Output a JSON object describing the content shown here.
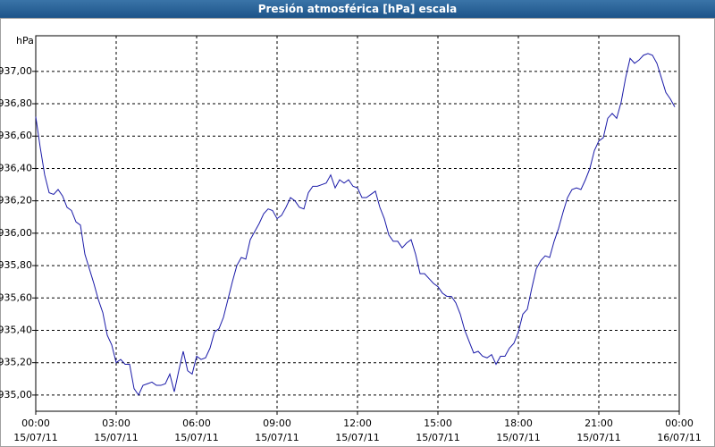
{
  "chart_data": {
    "type": "line",
    "title": "Presión atmosférica [hPa] escala",
    "y_unit": "hPa",
    "grid": true,
    "xlim": [
      0,
      1440
    ],
    "ylim": [
      934.9,
      937.22
    ],
    "xticks": [
      {
        "value": 0,
        "label": "00:00",
        "date": "15/07/11"
      },
      {
        "value": 180,
        "label": "03:00",
        "date": "15/07/11"
      },
      {
        "value": 360,
        "label": "06:00",
        "date": "15/07/11"
      },
      {
        "value": 540,
        "label": "09:00",
        "date": "15/07/11"
      },
      {
        "value": 720,
        "label": "12:00",
        "date": "15/07/11"
      },
      {
        "value": 900,
        "label": "15:00",
        "date": "15/07/11"
      },
      {
        "value": 1080,
        "label": "18:00",
        "date": "15/07/11"
      },
      {
        "value": 1260,
        "label": "21:00",
        "date": "15/07/11"
      },
      {
        "value": 1440,
        "label": "00:00",
        "date": "16/07/11"
      }
    ],
    "yticks": [
      {
        "value": 935,
        "label": "935,00"
      },
      {
        "value": 935.2,
        "label": "935,20"
      },
      {
        "value": 935.4,
        "label": "935,40"
      },
      {
        "value": 935.6,
        "label": "935,60"
      },
      {
        "value": 935.8,
        "label": "935,80"
      },
      {
        "value": 936,
        "label": "936,00"
      },
      {
        "value": 936.2,
        "label": "936,20"
      },
      {
        "value": 936.4,
        "label": "936,40"
      },
      {
        "value": 936.6,
        "label": "936,60"
      },
      {
        "value": 936.8,
        "label": "936,80"
      },
      {
        "value": 937,
        "label": "937,00"
      }
    ],
    "x": [
      0,
      10,
      20,
      30,
      40,
      50,
      60,
      70,
      80,
      90,
      100,
      110,
      120,
      130,
      140,
      150,
      160,
      170,
      180,
      190,
      200,
      210,
      220,
      230,
      240,
      250,
      260,
      270,
      280,
      290,
      300,
      310,
      320,
      330,
      340,
      350,
      360,
      370,
      380,
      390,
      400,
      410,
      420,
      430,
      440,
      450,
      460,
      470,
      480,
      490,
      500,
      510,
      520,
      530,
      540,
      550,
      560,
      570,
      580,
      590,
      600,
      610,
      620,
      630,
      640,
      650,
      660,
      670,
      680,
      690,
      700,
      710,
      720,
      730,
      740,
      750,
      760,
      770,
      780,
      790,
      800,
      810,
      820,
      830,
      840,
      850,
      860,
      870,
      880,
      890,
      900,
      910,
      920,
      930,
      940,
      950,
      960,
      970,
      980,
      990,
      1000,
      1010,
      1020,
      1030,
      1040,
      1050,
      1060,
      1070,
      1080,
      1090,
      1100,
      1110,
      1120,
      1130,
      1140,
      1150,
      1160,
      1170,
      1180,
      1190,
      1200,
      1210,
      1220,
      1230,
      1240,
      1250,
      1260,
      1270,
      1280,
      1290,
      1300,
      1310,
      1320,
      1330,
      1340,
      1350,
      1360,
      1370,
      1380,
      1390,
      1400,
      1410,
      1420,
      1430
    ],
    "series": [
      {
        "name": "Presión atmosférica",
        "color": "#1a1aa8",
        "values": [
          936.72,
          936.53,
          936.36,
          936.25,
          936.24,
          936.27,
          936.23,
          936.16,
          936.14,
          936.07,
          936.05,
          935.87,
          935.78,
          935.69,
          935.59,
          935.51,
          935.37,
          935.31,
          935.2,
          935.22,
          935.19,
          935.19,
          935.04,
          935.0,
          935.06,
          935.07,
          935.08,
          935.06,
          935.06,
          935.07,
          935.13,
          935.02,
          935.15,
          935.27,
          935.15,
          935.13,
          935.24,
          935.22,
          935.23,
          935.29,
          935.39,
          935.41,
          935.48,
          935.59,
          935.7,
          935.8,
          935.85,
          935.84,
          935.96,
          936.01,
          936.06,
          936.12,
          936.15,
          936.14,
          936.09,
          936.11,
          936.16,
          936.22,
          936.2,
          936.16,
          936.15,
          936.25,
          936.29,
          936.29,
          936.3,
          936.31,
          936.36,
          936.28,
          936.33,
          936.31,
          936.33,
          936.29,
          936.28,
          936.22,
          936.22,
          936.24,
          936.26,
          936.16,
          936.09,
          935.99,
          935.95,
          935.95,
          935.91,
          935.94,
          935.96,
          935.87,
          935.75,
          935.75,
          935.72,
          935.69,
          935.67,
          935.63,
          935.61,
          935.61,
          935.57,
          935.5,
          935.4,
          935.33,
          935.26,
          935.27,
          935.24,
          935.23,
          935.25,
          935.19,
          935.24,
          935.24,
          935.29,
          935.32,
          935.39,
          935.5,
          935.53,
          935.66,
          935.78,
          935.83,
          935.86,
          935.85,
          935.95,
          936.03,
          936.13,
          936.22,
          936.27,
          936.28,
          936.27,
          936.33,
          936.4,
          936.51,
          936.57,
          936.59,
          936.71,
          936.74,
          936.71,
          936.81,
          936.96,
          937.08,
          937.05,
          937.07,
          937.1,
          937.11,
          937.1,
          937.05,
          936.96,
          936.87,
          936.83,
          936.78
        ]
      }
    ]
  }
}
